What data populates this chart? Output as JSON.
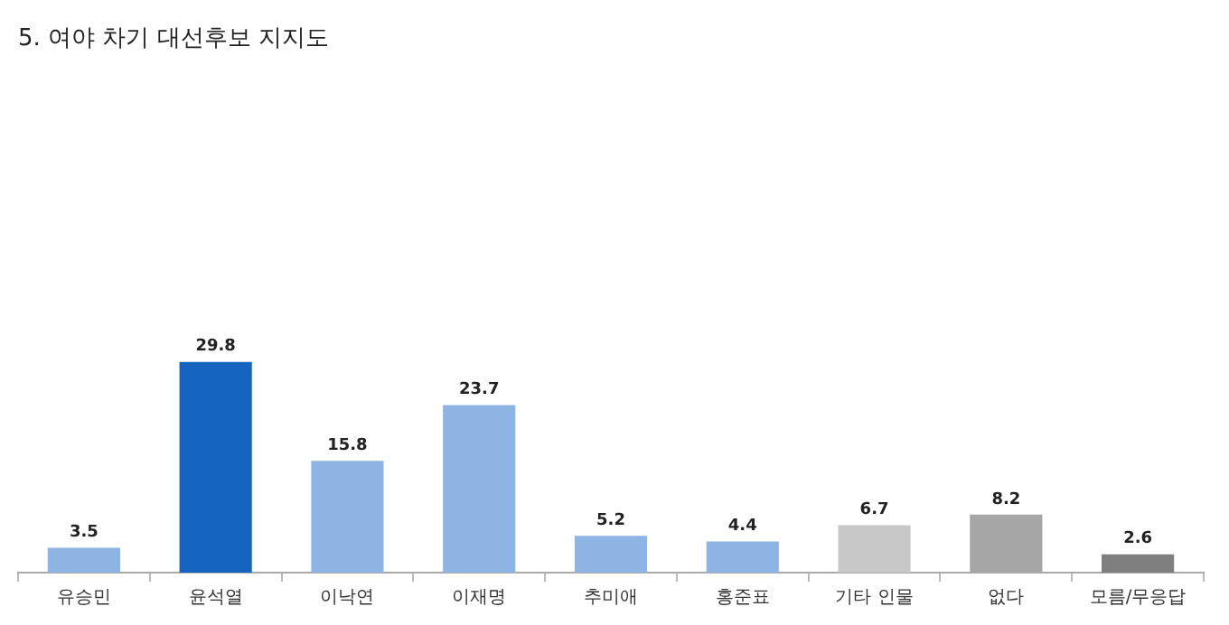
{
  "chart_data": {
    "type": "bar",
    "title": "5. 여야 차기 대선후보 지지도",
    "categories": [
      "유승민",
      "윤석열",
      "이낙연",
      "이재명",
      "추미애",
      "홍준표",
      "기타 인물",
      "없다",
      "모름/무응답"
    ],
    "values": [
      3.5,
      29.8,
      15.8,
      23.7,
      5.2,
      4.4,
      6.7,
      8.2,
      2.6
    ],
    "colors": [
      "#8db4e2",
      "#1565c0",
      "#8db4e2",
      "#8db4e2",
      "#8db4e2",
      "#8db4e2",
      "#c8c8c8",
      "#a6a6a6",
      "#7f7f7f"
    ],
    "data_labels": true,
    "grid": false,
    "legend": false
  }
}
